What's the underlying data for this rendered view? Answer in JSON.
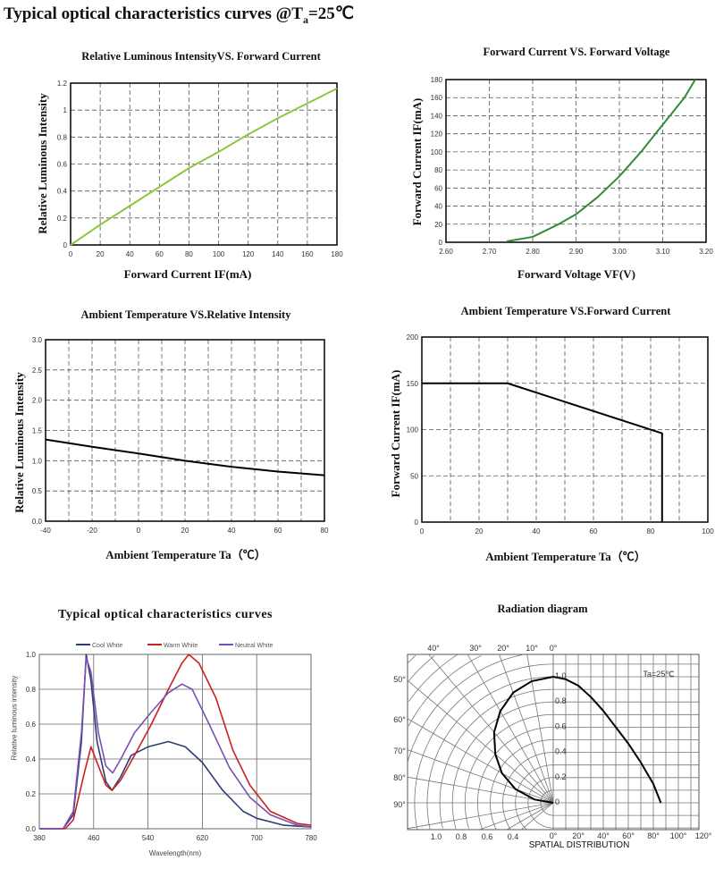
{
  "page_title": {
    "main": "Typical optical characteristics curves @T",
    "sub": "a",
    "tail": "=25℃"
  },
  "chart_data": [
    {
      "type": "line",
      "title": "Relative Luminous IntensityVS. Forward Current",
      "xlabel": "Forward Current IF(mA)",
      "ylabel": "Relative Luminous Intensity",
      "xlim": [
        0,
        180
      ],
      "ylim": [
        0,
        1.2
      ],
      "xticks": [
        "0",
        "20",
        "40",
        "60",
        "80",
        "100",
        "120",
        "140",
        "160",
        "180"
      ],
      "yticks": [
        "0",
        "0.2",
        "0.4",
        "0.6",
        "0.8",
        "1",
        "1.2"
      ],
      "grid": "dashed",
      "series": [
        {
          "color": "#8dc63f",
          "x": [
            0,
            20,
            40,
            60,
            80,
            100,
            120,
            140,
            160,
            180
          ],
          "y": [
            0,
            0.15,
            0.29,
            0.43,
            0.57,
            0.69,
            0.82,
            0.94,
            1.05,
            1.16
          ]
        }
      ]
    },
    {
      "type": "line",
      "title": "Forward Current VS. Forward Voltage",
      "xlabel": "Forward Voltage VF(V)",
      "ylabel": "Forward Current IF(mA)",
      "xlim": [
        2.6,
        3.2
      ],
      "ylim": [
        0,
        180
      ],
      "xticks": [
        "2.60",
        "2.70",
        "2.80",
        "2.90",
        "3.00",
        "3.10",
        "3.20"
      ],
      "yticks": [
        "0",
        "20",
        "40",
        "60",
        "80",
        "100",
        "120",
        "140",
        "160",
        "180"
      ],
      "grid": "dashed",
      "series": [
        {
          "color": "#2e8b3a",
          "x": [
            2.74,
            2.8,
            2.86,
            2.9,
            2.95,
            3.0,
            3.05,
            3.1,
            3.15,
            3.175
          ],
          "y": [
            1,
            6,
            20,
            31,
            50,
            73,
            100,
            130,
            160,
            180
          ]
        }
      ]
    },
    {
      "type": "line",
      "title": "Ambient Temperature VS.Relative Intensity",
      "xlabel": "Ambient Temperature Ta（℃）",
      "ylabel": "Relative Luminous Intensity",
      "xlim": [
        -40,
        80
      ],
      "ylim": [
        0,
        3
      ],
      "xticks": [
        "-40",
        "-20",
        "0",
        "20",
        "40",
        "60",
        "80"
      ],
      "yticks": [
        "0.0",
        "0.5",
        "1.0",
        "1.5",
        "2.0",
        "2.5",
        "3.0"
      ],
      "grid": "dashed",
      "minor_x_grid": 10,
      "series": [
        {
          "color": "#000000",
          "x": [
            -40,
            -20,
            0,
            20,
            40,
            60,
            80
          ],
          "y": [
            1.35,
            1.23,
            1.12,
            1.0,
            0.9,
            0.82,
            0.76
          ]
        }
      ]
    },
    {
      "type": "line",
      "title": "Ambient Temperature VS.Forward Current",
      "xlabel": "Ambient Temperature Ta（℃）",
      "ylabel": "Forward Current IF(mA)",
      "xlim": [
        0,
        100
      ],
      "ylim": [
        0,
        200
      ],
      "xticks": [
        "0",
        "20",
        "40",
        "60",
        "80",
        "100"
      ],
      "yticks": [
        "0",
        "50",
        "100",
        "150",
        "200"
      ],
      "grid": "dashed",
      "minor_x_grid": 10,
      "series": [
        {
          "color": "#000000",
          "x": [
            0,
            30,
            84,
            84
          ],
          "y": [
            150,
            150,
            96,
            0
          ]
        }
      ]
    },
    {
      "type": "line",
      "title": "Typical optical characteristics curves",
      "xlabel": "Wavelength(nm)",
      "ylabel": "Relative luminous intensity",
      "xlim": [
        380,
        780
      ],
      "ylim": [
        0,
        1
      ],
      "xticks": [
        "380",
        "460",
        "540",
        "620",
        "700",
        "780"
      ],
      "yticks": [
        "0.0",
        "0.2",
        "0.4",
        "0.6",
        "0.8",
        "1.0"
      ],
      "grid": "solid",
      "legend": "top",
      "series": [
        {
          "name": "Cool White",
          "color": "#2c3e73",
          "x": [
            380,
            415,
            430,
            442,
            449,
            456,
            465,
            478,
            487,
            500,
            515,
            540,
            570,
            595,
            620,
            650,
            680,
            700,
            740,
            780
          ],
          "y": [
            0,
            0,
            0.08,
            0.5,
            1.0,
            0.85,
            0.5,
            0.27,
            0.22,
            0.3,
            0.42,
            0.47,
            0.5,
            0.47,
            0.38,
            0.22,
            0.1,
            0.06,
            0.02,
            0.01
          ]
        },
        {
          "name": "Warm White",
          "color": "#cc1f1f",
          "x": [
            380,
            418,
            430,
            445,
            456,
            465,
            478,
            487,
            500,
            520,
            545,
            570,
            590,
            600,
            615,
            640,
            665,
            690,
            720,
            760,
            780
          ],
          "y": [
            0,
            0,
            0.05,
            0.3,
            0.47,
            0.38,
            0.25,
            0.22,
            0.28,
            0.42,
            0.6,
            0.8,
            0.95,
            1.0,
            0.95,
            0.75,
            0.45,
            0.25,
            0.1,
            0.03,
            0.02
          ]
        },
        {
          "name": "Neutral White",
          "color": "#7a4fb5",
          "x": [
            380,
            415,
            430,
            442,
            449,
            456,
            467,
            478,
            488,
            500,
            520,
            545,
            570,
            590,
            605,
            630,
            660,
            690,
            720,
            760,
            780
          ],
          "y": [
            0,
            0,
            0.1,
            0.55,
            0.98,
            0.9,
            0.55,
            0.36,
            0.32,
            0.4,
            0.55,
            0.67,
            0.78,
            0.83,
            0.8,
            0.6,
            0.35,
            0.18,
            0.08,
            0.02,
            0.01
          ]
        }
      ]
    },
    {
      "type": "polar",
      "title": "Radiation diagram",
      "xlabel": "SPATIAL DISTRIBUTION",
      "annotation": "Ta=25℃",
      "top_angle_labels": [
        "40°",
        "30°",
        "20°",
        "10°",
        "0°"
      ],
      "left_angle_labels": [
        "50°",
        "60°",
        "70°",
        "80°",
        "90°"
      ],
      "bottom_intensity_labels": [
        "1.0",
        "0.8",
        "0.6",
        "0.4"
      ],
      "bottom_angle_labels": [
        "0°",
        "20°",
        "40°",
        "60°",
        "80°",
        "100°",
        "120°"
      ],
      "intensity_labels": [
        "0",
        "0.2",
        "0.4",
        "0.6",
        "0.8",
        "1.0"
      ],
      "series": [
        {
          "color": "#000000",
          "angle": [
            0,
            10,
            20,
            30,
            40,
            50,
            60,
            70,
            80,
            86
          ],
          "intensity": [
            1.0,
            0.98,
            0.93,
            0.84,
            0.73,
            0.6,
            0.47,
            0.32,
            0.15,
            0
          ]
        }
      ]
    }
  ]
}
